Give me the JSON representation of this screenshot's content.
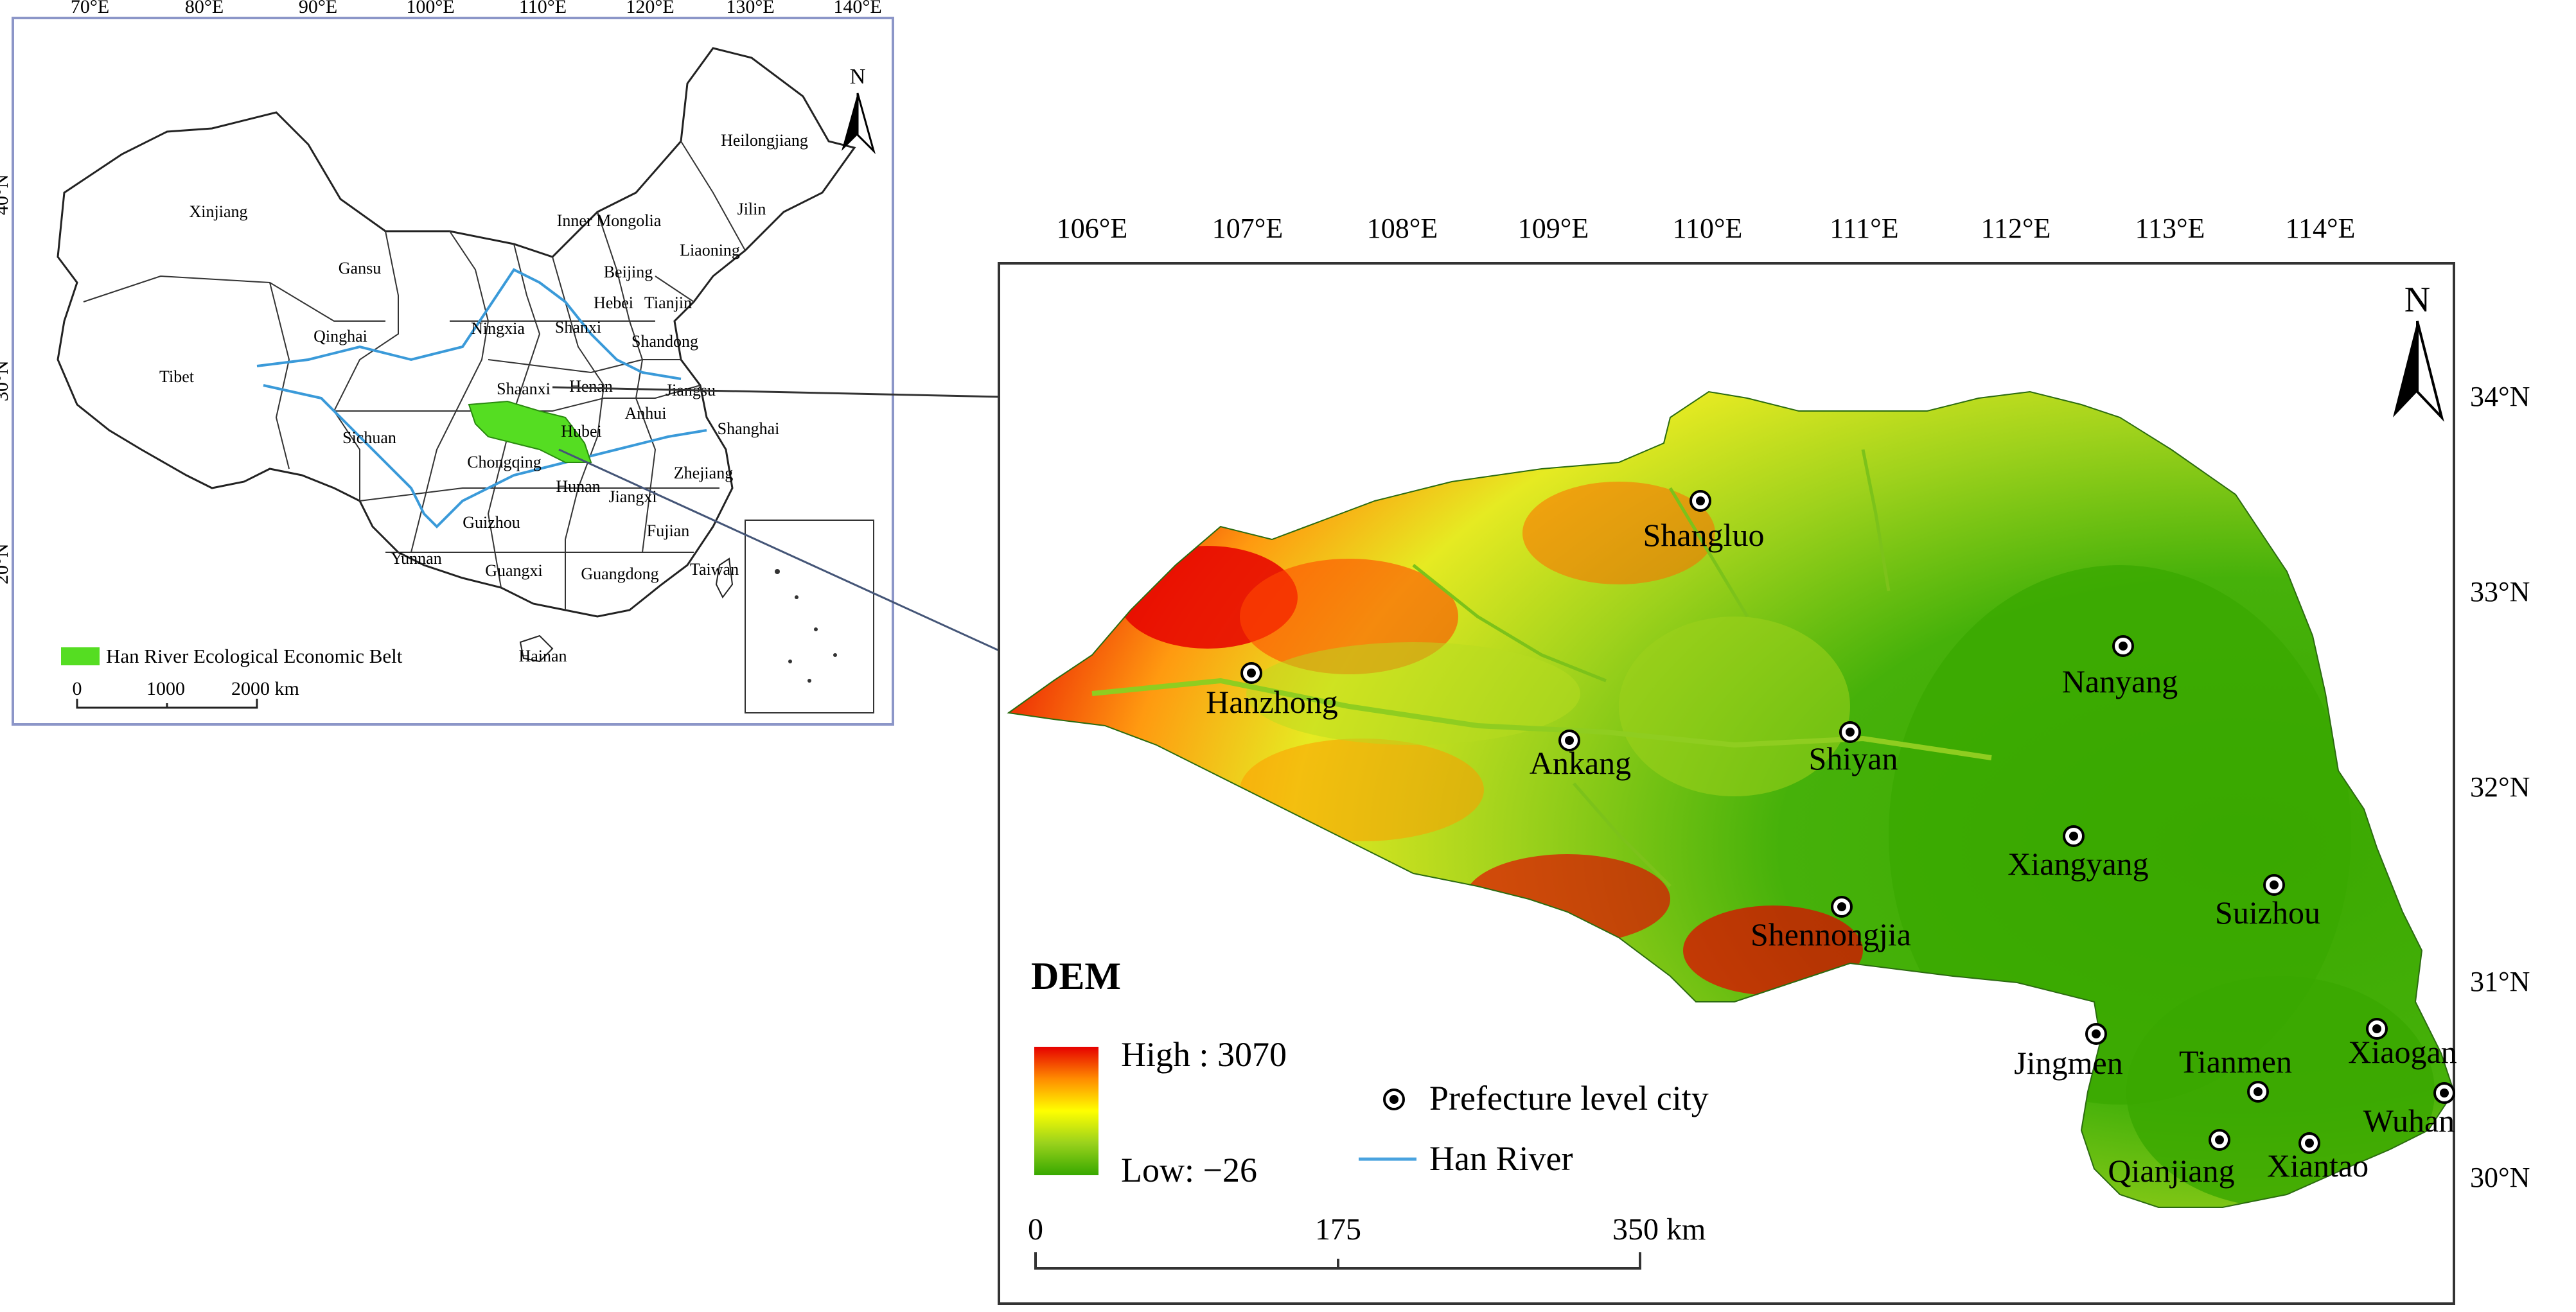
{
  "inset_map": {
    "lon_ticks": [
      "70°E",
      "80°E",
      "90°E",
      "100°E",
      "110°E",
      "120°E",
      "130°E",
      "140°E"
    ],
    "lat_ticks": [
      "40°N",
      "30°N",
      "20°N"
    ],
    "north_label": "N",
    "provinces": [
      "Xinjiang",
      "Tibet",
      "Qinghai",
      "Gansu",
      "Inner Mongolia",
      "Heilongjiang",
      "Jilin",
      "Liaoning",
      "Beijing",
      "Tianjin",
      "Hebei",
      "Shanxi",
      "Shandong",
      "Ningxia",
      "Shaanxi",
      "Henan",
      "Jiangsu",
      "Anhui",
      "Shanghai",
      "Sichuan",
      "Chongqing",
      "Hubei",
      "Zhejiang",
      "Jiangxi",
      "Hunan",
      "Guizhou",
      "Fujian",
      "Yunnan",
      "Guangxi",
      "Guangdong",
      "Taiwan",
      "Hainan"
    ],
    "legend_label": "Han River Ecological Economic Belt",
    "legend_color": "#55dd22",
    "scale_labels": [
      "0",
      "1000",
      "2000 km"
    ]
  },
  "main_map": {
    "lon_ticks": [
      "106°E",
      "107°E",
      "108°E",
      "109°E",
      "110°E",
      "111°E",
      "112°E",
      "113°E",
      "114°E"
    ],
    "lat_ticks": [
      "34°N",
      "33°N",
      "32°N",
      "31°N",
      "30°N"
    ],
    "north_label": "N",
    "cities": [
      "Shangluo",
      "Hanzhong",
      "Ankang",
      "Shiyan",
      "Nanyang",
      "Xiangyang",
      "Suizhou",
      "Shennongjia",
      "Jingmen",
      "Tianmen",
      "Xiaogan",
      "Wuhan",
      "Qianjiang",
      "Xiantao"
    ],
    "legend": {
      "title": "DEM",
      "high": "High : 3070",
      "low": "Low: −26",
      "city": "Prefecture level city",
      "river": "Han River",
      "high_color": "#e60000",
      "mid_color": "#ffff00",
      "low_color": "#38a800",
      "river_color": "#4aa3df"
    },
    "scale_labels": [
      "0",
      "175",
      "350 km"
    ]
  }
}
